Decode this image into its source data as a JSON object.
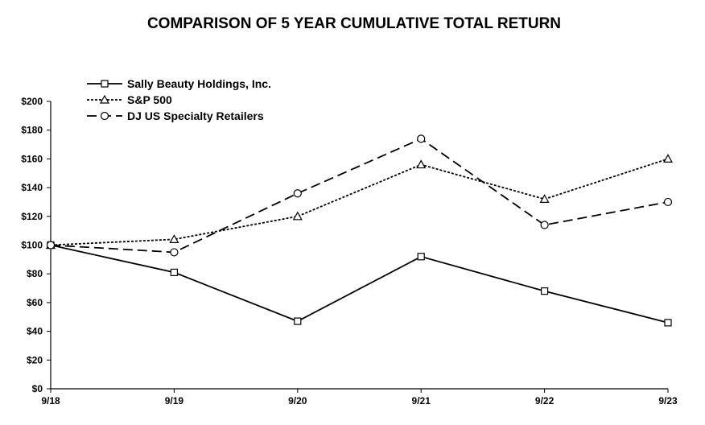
{
  "chart_data": {
    "type": "line",
    "title": "COMPARISON OF 5 YEAR CUMULATIVE TOTAL RETURN",
    "categories": [
      "9/18",
      "9/19",
      "9/20",
      "9/21",
      "9/22",
      "9/23"
    ],
    "y_tick_labels": [
      "$0",
      "$20",
      "$40",
      "$60",
      "$80",
      "$100",
      "$120",
      "$140",
      "$160",
      "$180",
      "$200"
    ],
    "ylim": [
      0,
      200
    ],
    "y_step": 20,
    "grid": false,
    "legend_position": "top-left",
    "series": [
      {
        "name": "Sally Beauty Holdings, Inc.",
        "marker": "square",
        "dash": "solid",
        "values": [
          100,
          81,
          47,
          92,
          68,
          46
        ]
      },
      {
        "name": "S&P 500",
        "marker": "triangle",
        "dash": "dotted",
        "values": [
          100,
          104,
          120,
          156,
          132,
          160
        ]
      },
      {
        "name": "DJ US Specialty Retailers",
        "marker": "circle",
        "dash": "dashed",
        "values": [
          100,
          95,
          136,
          174,
          114,
          130
        ]
      }
    ]
  }
}
